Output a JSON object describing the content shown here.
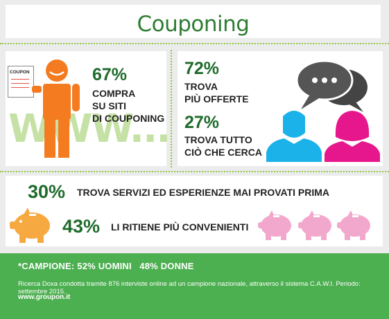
{
  "title": "Couponing",
  "stat1": {
    "value": "67%",
    "line1": "COMPRA",
    "line2": "SU SITI",
    "line3": "DI COUPONING"
  },
  "coupon_label": "COUPON",
  "www_text": "WWW...",
  "stat2": {
    "value": "72%",
    "line1": "TROVA",
    "line2": "PIÙ OFFERTE"
  },
  "stat3": {
    "value": "27%",
    "line1": "TROVA TUTTO",
    "line2": "CIÒ CHE CERCA"
  },
  "stat4": {
    "value": "30%",
    "text": "TROVA SERVIZI ED ESPERIENZE MAI PROVATI PRIMA"
  },
  "stat5": {
    "value": "43%",
    "text": "LI RITIENE PIÙ CONVENIENTI"
  },
  "footer": {
    "sample": "*CAMPIONE: 52% UOMINI   48% DONNE",
    "note": "Ricerca Doxa condotta tramite 876 interviste online ad un campione nazionale, attraverso il sistema C.A.W.I. Periodo: settembre 2015.",
    "site": "www.groupon.it"
  },
  "colors": {
    "green": "#4caf50",
    "dark_green": "#1f6b2c",
    "orange": "#f47b20",
    "blue": "#1ab2e8",
    "pink": "#e6178c",
    "light_pink": "#f2a7cc",
    "light_orange": "#f7a941",
    "gray": "#555555"
  }
}
